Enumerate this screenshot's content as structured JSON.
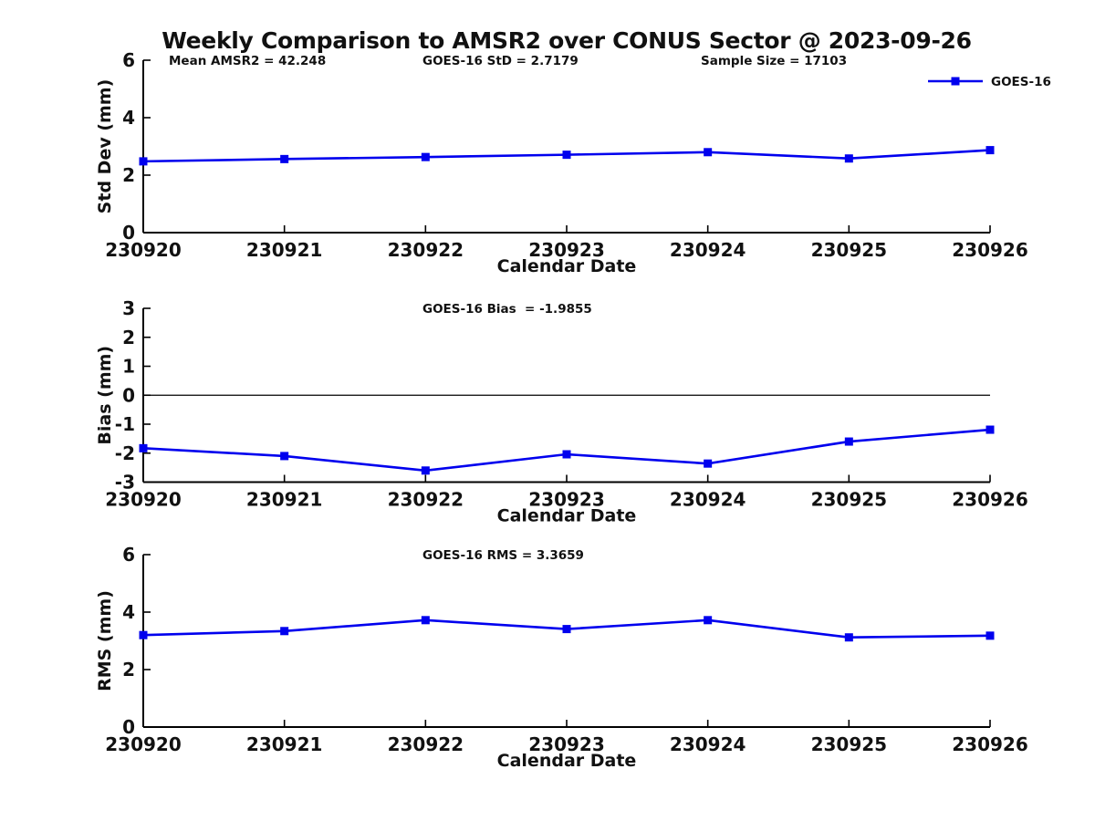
{
  "title": "Weekly Comparison to AMSR2 over CONUS Sector @ 2023-09-26",
  "colors": {
    "line": "#0000ee",
    "marker": "#0000ee",
    "text": "#111111",
    "axis": "#000000",
    "background": "#ffffff"
  },
  "legend": {
    "label": "GOES-16",
    "position": "top-right",
    "marker": "filled-square"
  },
  "chart_data": [
    {
      "type": "line",
      "name": "std-dev-panel",
      "annotations": [
        "Mean AMSR2 = 42.248",
        "GOES-16 StD = 2.7179",
        "Sample Size = 17103"
      ],
      "xlabel": "Calendar Date",
      "ylabel": "Std Dev (mm)",
      "categories": [
        "230920",
        "230921",
        "230922",
        "230923",
        "230924",
        "230925",
        "230926"
      ],
      "series": [
        {
          "name": "GOES-16",
          "values": [
            2.48,
            2.56,
            2.63,
            2.71,
            2.8,
            2.58,
            2.87
          ]
        }
      ],
      "ylim": [
        0,
        6
      ],
      "yticks": [
        0,
        2,
        4,
        6
      ],
      "zero_line": false,
      "grid": false,
      "show_legend": true
    },
    {
      "type": "line",
      "name": "bias-panel",
      "annotations": [
        "GOES-16 Bias  = -1.9855"
      ],
      "xlabel": "Calendar Date",
      "ylabel": "Bias (mm)",
      "categories": [
        "230920",
        "230921",
        "230922",
        "230923",
        "230924",
        "230925",
        "230926"
      ],
      "series": [
        {
          "name": "GOES-16",
          "values": [
            -1.83,
            -2.1,
            -2.6,
            -2.04,
            -2.36,
            -1.6,
            -1.19
          ]
        }
      ],
      "ylim": [
        -3,
        3
      ],
      "yticks": [
        3,
        2,
        1,
        0,
        -1,
        -2,
        -3
      ],
      "zero_line": true,
      "grid": false,
      "show_legend": false
    },
    {
      "type": "line",
      "name": "rms-panel",
      "annotations": [
        "GOES-16 RMS = 3.3659"
      ],
      "xlabel": "Calendar Date",
      "ylabel": "RMS (mm)",
      "categories": [
        "230920",
        "230921",
        "230922",
        "230923",
        "230924",
        "230925",
        "230926"
      ],
      "series": [
        {
          "name": "GOES-16",
          "values": [
            3.2,
            3.34,
            3.72,
            3.41,
            3.72,
            3.12,
            3.18
          ]
        }
      ],
      "ylim": [
        0,
        6
      ],
      "yticks": [
        0,
        2,
        4,
        6
      ],
      "zero_line": false,
      "grid": false,
      "show_legend": false
    }
  ]
}
